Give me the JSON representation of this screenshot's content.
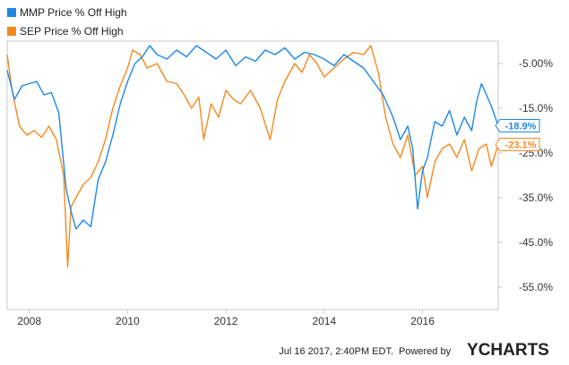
{
  "chart_data": {
    "type": "line",
    "title": "",
    "xlabel": "",
    "ylabel": "",
    "x_ticks": [
      "2008",
      "2010",
      "2012",
      "2014",
      "2016"
    ],
    "y_ticks": [
      "-5.00%",
      "-15.0%",
      "-25.0%",
      "-35.0%",
      "-45.0%",
      "-55.0%"
    ],
    "x_range": [
      2007.55,
      2017.54
    ],
    "ylim": [
      -60.0,
      0.0
    ],
    "grid": false,
    "legend_position": "top-left",
    "series": [
      {
        "name": "MMP Price % Off High",
        "color": "#1e88e5",
        "last_value_label": "-18.9%",
        "x": [
          2007.55,
          2007.7,
          2007.85,
          2008.0,
          2008.15,
          2008.3,
          2008.45,
          2008.6,
          2008.75,
          2008.85,
          2008.95,
          2009.1,
          2009.25,
          2009.4,
          2009.55,
          2009.7,
          2009.85,
          2010.0,
          2010.15,
          2010.3,
          2010.45,
          2010.6,
          2010.8,
          2011.0,
          2011.2,
          2011.4,
          2011.6,
          2011.8,
          2012.0,
          2012.2,
          2012.4,
          2012.6,
          2012.8,
          2013.0,
          2013.2,
          2013.4,
          2013.6,
          2013.8,
          2014.0,
          2014.2,
          2014.4,
          2014.6,
          2014.8,
          2015.0,
          2015.2,
          2015.4,
          2015.55,
          2015.7,
          2015.8,
          2015.9,
          2016.0,
          2016.1,
          2016.25,
          2016.4,
          2016.55,
          2016.7,
          2016.85,
          2017.0,
          2017.1,
          2017.2,
          2017.3,
          2017.4,
          2017.54
        ],
        "y": [
          -6.5,
          -13.0,
          -10.0,
          -9.5,
          -9.0,
          -12.0,
          -11.5,
          -16.0,
          -33.0,
          -38.0,
          -42.0,
          -40.0,
          -41.5,
          -31.0,
          -27.0,
          -21.0,
          -14.0,
          -9.0,
          -5.0,
          -3.5,
          -1.0,
          -3.0,
          -4.0,
          -2.0,
          -3.5,
          -1.0,
          -2.5,
          -4.0,
          -2.0,
          -5.5,
          -3.5,
          -4.5,
          -2.0,
          -3.0,
          -1.5,
          -4.0,
          -2.5,
          -3.0,
          -4.0,
          -5.5,
          -3.0,
          -4.5,
          -6.0,
          -9.0,
          -12.0,
          -17.0,
          -22.0,
          -19.0,
          -24.0,
          -37.5,
          -29.0,
          -26.0,
          -18.0,
          -19.0,
          -15.5,
          -21.0,
          -17.0,
          -20.0,
          -13.5,
          -9.5,
          -12.0,
          -14.5,
          -18.9
        ]
      },
      {
        "name": "SEP Price % Off High",
        "color": "#f5891f",
        "last_value_label": "-23.1%",
        "x": [
          2007.55,
          2007.65,
          2007.8,
          2007.95,
          2008.1,
          2008.25,
          2008.4,
          2008.55,
          2008.7,
          2008.78,
          2008.85,
          2008.95,
          2009.1,
          2009.25,
          2009.4,
          2009.55,
          2009.7,
          2009.85,
          2010.0,
          2010.1,
          2010.25,
          2010.4,
          2010.6,
          2010.8,
          2011.0,
          2011.15,
          2011.3,
          2011.45,
          2011.55,
          2011.7,
          2011.85,
          2012.0,
          2012.15,
          2012.3,
          2012.5,
          2012.7,
          2012.9,
          2013.05,
          2013.2,
          2013.4,
          2013.55,
          2013.7,
          2013.85,
          2014.0,
          2014.2,
          2014.4,
          2014.6,
          2014.8,
          2014.95,
          2015.1,
          2015.25,
          2015.4,
          2015.55,
          2015.7,
          2015.85,
          2016.0,
          2016.1,
          2016.25,
          2016.4,
          2016.55,
          2016.7,
          2016.85,
          2017.0,
          2017.15,
          2017.3,
          2017.4,
          2017.54
        ],
        "y": [
          -3.0,
          -11.0,
          -19.0,
          -21.0,
          -20.0,
          -21.5,
          -19.0,
          -22.0,
          -30.0,
          -50.5,
          -37.0,
          -35.0,
          -32.0,
          -30.5,
          -27.0,
          -22.0,
          -15.0,
          -10.0,
          -6.0,
          -2.0,
          -3.0,
          -6.0,
          -5.0,
          -9.0,
          -9.5,
          -12.0,
          -15.0,
          -12.5,
          -22.0,
          -14.0,
          -17.0,
          -11.0,
          -13.0,
          -14.0,
          -11.0,
          -15.0,
          -22.0,
          -13.0,
          -9.0,
          -5.0,
          -7.0,
          -3.0,
          -5.0,
          -8.0,
          -6.0,
          -4.0,
          -2.5,
          -3.0,
          -1.0,
          -7.0,
          -17.0,
          -23.0,
          -26.0,
          -21.0,
          -30.0,
          -28.0,
          -35.0,
          -27.0,
          -24.0,
          -23.0,
          -26.0,
          -22.0,
          -29.0,
          -24.0,
          -23.0,
          -28.0,
          -23.1
        ]
      }
    ]
  },
  "footer": {
    "timestamp": "Jul 16 2017, 2:40PM EDT.",
    "powered_by": "Powered by",
    "brand_y": "Y",
    "brand_rest": "CHARTS"
  }
}
